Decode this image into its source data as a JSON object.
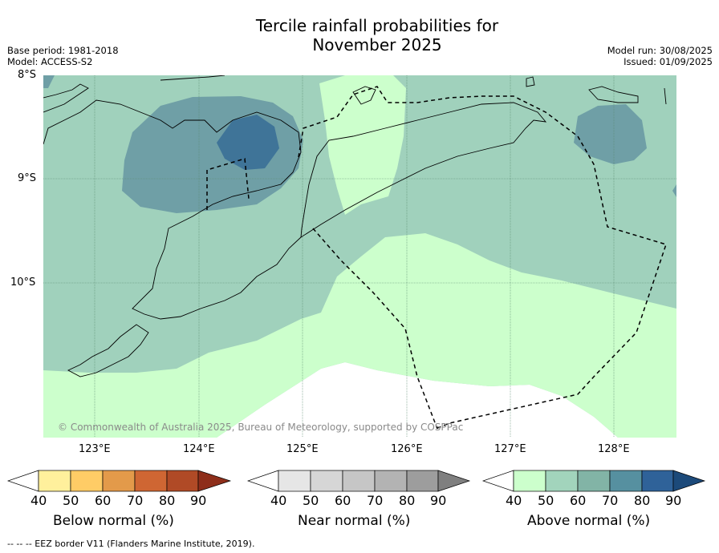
{
  "title_line1": "Tercile rainfall probabilities for",
  "title_line2": "November 2025",
  "meta": {
    "base_period": "Base period: 1981-2018",
    "model": "Model: ACCESS-S2",
    "model_run": "Model run: 30/08/2025",
    "issued": "Issued: 01/09/2025"
  },
  "map": {
    "lat_labels": [
      "8°S",
      "9°S",
      "10°S"
    ],
    "lon_labels": [
      "123°E",
      "124°E",
      "125°E",
      "126°E",
      "127°E",
      "128°E"
    ],
    "copyright": "© Commonwealth of Australia 2025, Bureau of Meteorology, supported by COSPPac"
  },
  "legend": {
    "below": {
      "label": "Below normal (%)",
      "ticks": [
        "40",
        "50",
        "60",
        "70",
        "80",
        "90"
      ],
      "colors": [
        "#fff09c",
        "#ffcc66",
        "#e39a4a",
        "#cf6633",
        "#b04a26",
        "#8e2e1a"
      ]
    },
    "near": {
      "label": "Near normal (%)",
      "ticks": [
        "40",
        "50",
        "60",
        "70",
        "80",
        "90"
      ],
      "colors": [
        "#e6e6e6",
        "#d6d6d6",
        "#c6c6c6",
        "#b3b3b3",
        "#9d9d9d",
        "#7f7f7f"
      ]
    },
    "above": {
      "label": "Above normal (%)",
      "ticks": [
        "40",
        "50",
        "60",
        "70",
        "80",
        "90"
      ],
      "colors": [
        "#ccffcc",
        "#a2d4bc",
        "#82b4a6",
        "#5690a0",
        "#2f6299",
        "#1c4a7a"
      ]
    }
  },
  "footnote": "--  --  -- EEZ border V11 (Flanders Marine Institute, 2019)."
}
